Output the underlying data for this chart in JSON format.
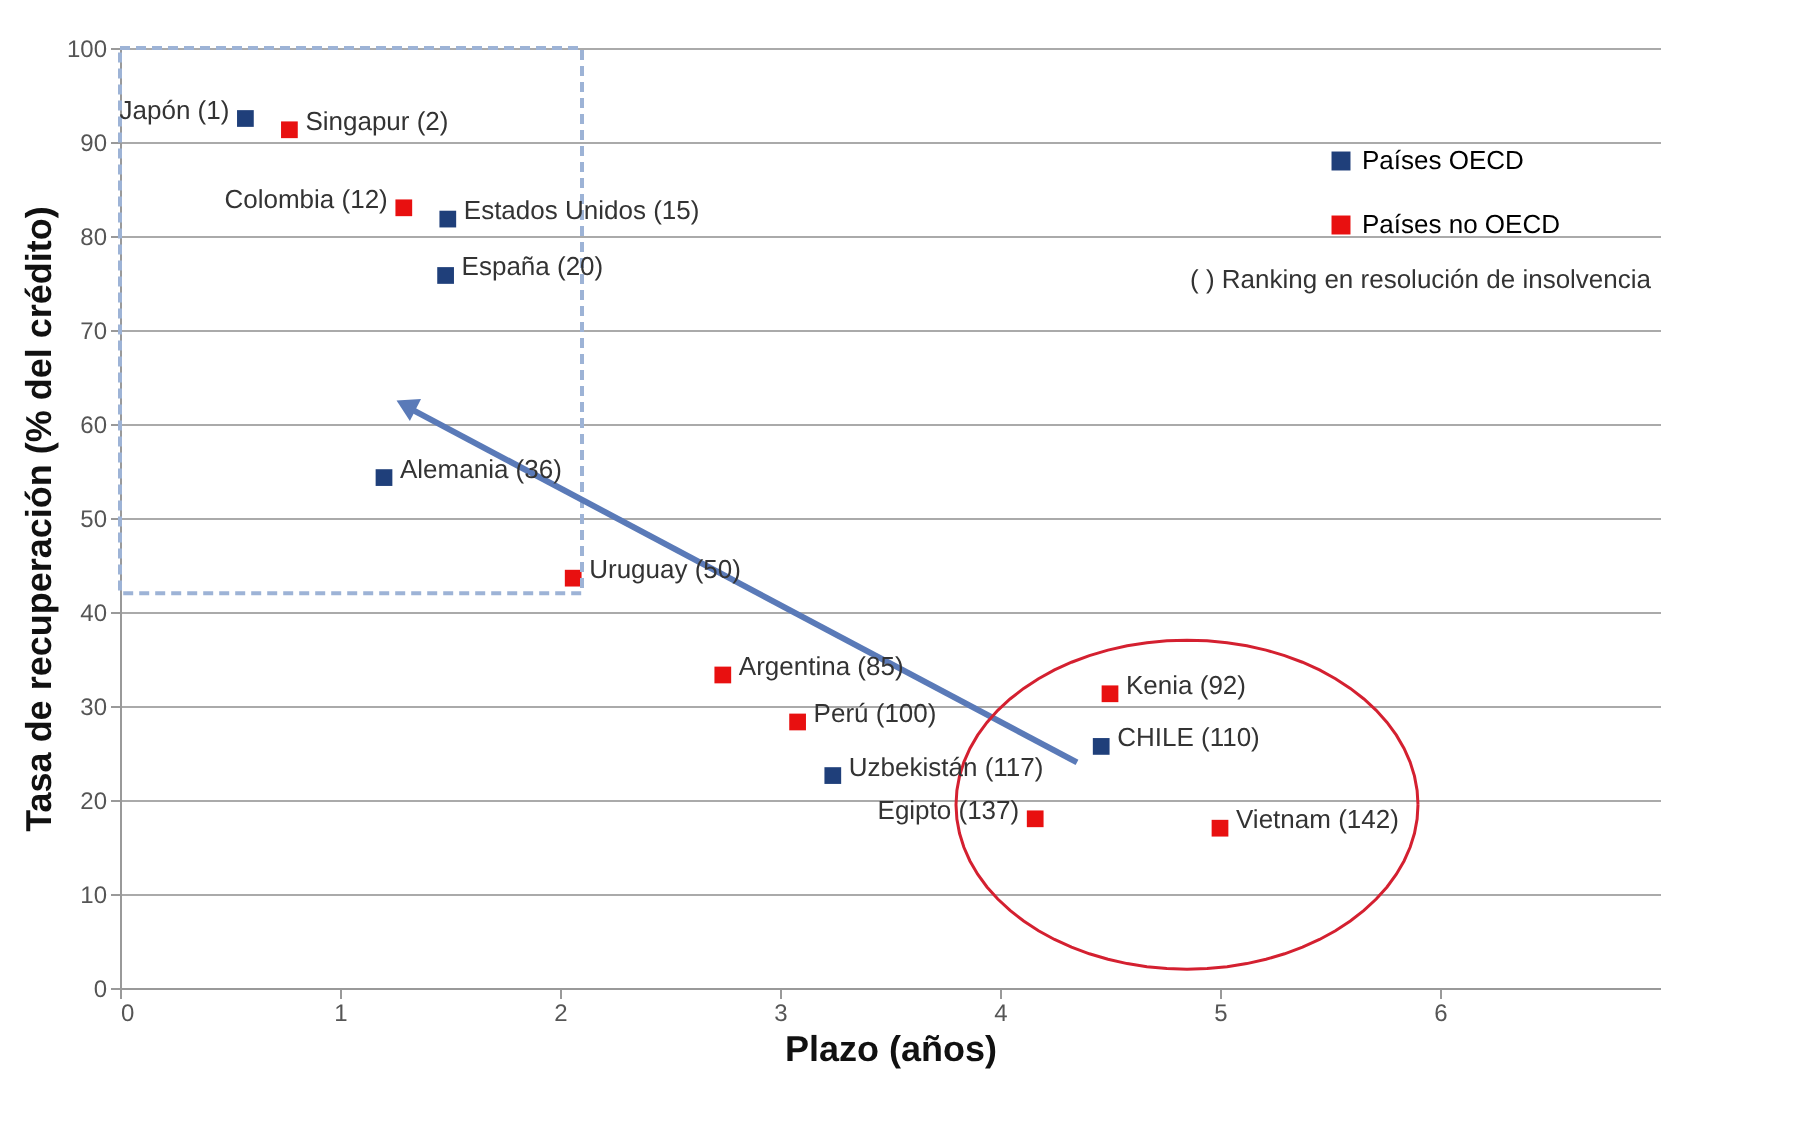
{
  "chart_data": {
    "type": "scatter",
    "xlabel": "Plazo (años)",
    "ylabel": "Tasa de recuperación (% del crédito)",
    "xlim": [
      0,
      7
    ],
    "xticks": [
      0,
      1,
      2,
      3,
      4,
      5,
      6
    ],
    "ylim": [
      0,
      100
    ],
    "yticks": [
      0,
      10,
      20,
      30,
      40,
      50,
      60,
      70,
      80,
      90,
      100
    ],
    "grid": "y",
    "legend": "top right",
    "marker": "square",
    "series": [
      {
        "name": "Países OECD",
        "color": "#1f3f7a",
        "x": [
          0.57,
          1.49,
          1.48,
          1.2,
          3.24,
          4.46
        ],
        "values": [
          92.5,
          81.8,
          75.8,
          54.3,
          22.6,
          25.7
        ]
      },
      {
        "name": "Países no OECD",
        "color": "#e81010",
        "x": [
          0.77,
          1.29,
          2.06,
          2.74,
          3.08,
          4.5,
          4.16,
          5.0
        ],
        "values": [
          91.3,
          83,
          43.6,
          33.3,
          28.3,
          31.3,
          18,
          17
        ]
      }
    ],
    "annotations": [
      {
        "text": "Japón (1)",
        "x": 0.57,
        "y": 92.5
      },
      {
        "text": "Singapur (2)",
        "x": 0.77,
        "y": 91.3
      },
      {
        "text": "Colombia (12)",
        "x": 1.29,
        "y": 83
      },
      {
        "text": "Estados Unidos (15)",
        "x": 1.49,
        "y": 81.8
      },
      {
        "text": "España (20)",
        "x": 1.48,
        "y": 75.8
      },
      {
        "text": "Alemania (36)",
        "x": 1.2,
        "y": 54.3
      },
      {
        "text": "Uruguay (50)",
        "x": 2.06,
        "y": 43.6
      },
      {
        "text": "Argentina (85)",
        "x": 2.74,
        "y": 33.3
      },
      {
        "text": "Perú (100)",
        "x": 3.08,
        "y": 28.3
      },
      {
        "text": "Uzbekistán (117)",
        "x": 3.24,
        "y": 22.6
      },
      {
        "text": "Kenia (92)",
        "x": 4.5,
        "y": 31.3
      },
      {
        "text": "CHILE (110)",
        "x": 4.46,
        "y": 25.7
      },
      {
        "text": "Egipto (137)",
        "x": 4.16,
        "y": 18
      },
      {
        "text": "Vietnam (142)",
        "x": 5.0,
        "y": 17
      },
      "( )  Ranking en resolución de insolvencia"
    ]
  }
}
